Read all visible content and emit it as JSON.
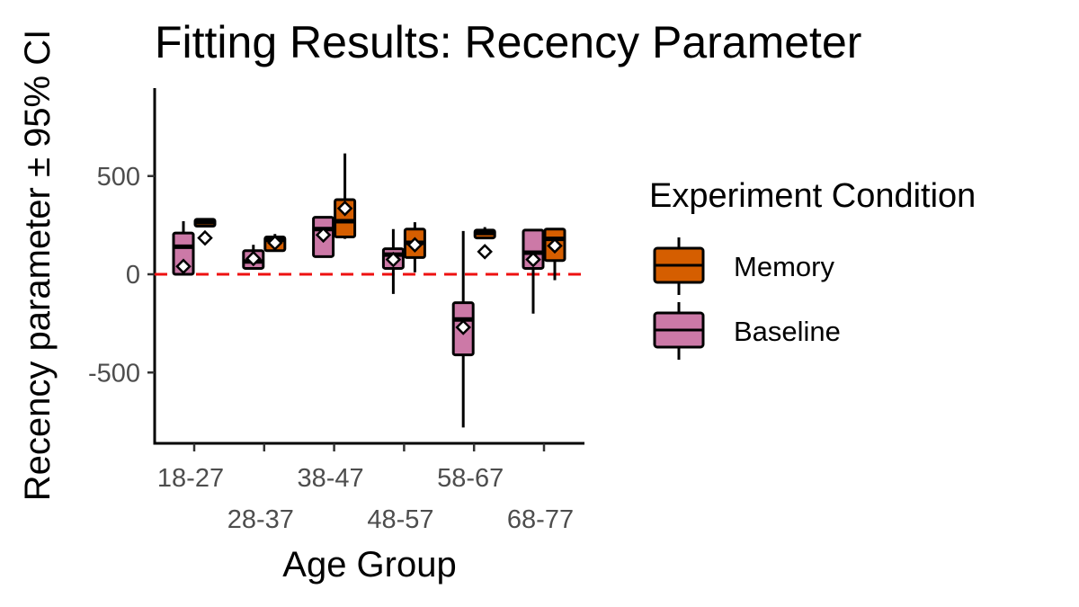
{
  "chart_data": {
    "type": "boxplot",
    "title": "Fitting Results: Recency Parameter",
    "xlabel": "Age Group",
    "ylabel": "Recency parameter ± 95% CI",
    "categories": [
      "18-27",
      "28-37",
      "38-47",
      "48-57",
      "58-67",
      "68-77"
    ],
    "yticks": [
      -500,
      0,
      500
    ],
    "ylim": [
      -870,
      950
    ],
    "reference_line": {
      "y": 0,
      "style": "dashed",
      "color": "#ee1111"
    },
    "grid": false,
    "legend": {
      "title": "Experiment Condition",
      "position": "right",
      "entries": [
        {
          "name": "Memory",
          "color": "#d55e00"
        },
        {
          "name": "Baseline",
          "color": "#cc79a7"
        }
      ]
    },
    "series": [
      {
        "name": "Baseline",
        "color": "#cc79a7",
        "boxes": [
          {
            "category": "18-27",
            "whisker_low": 0,
            "q1": 0,
            "median": 140,
            "q3": 210,
            "whisker_high": 270,
            "mean": 40
          },
          {
            "category": "28-37",
            "whisker_low": 30,
            "q1": 30,
            "median": 65,
            "q3": 120,
            "whisker_high": 150,
            "mean": 80
          },
          {
            "category": "38-47",
            "whisker_low": 90,
            "q1": 90,
            "median": 230,
            "q3": 290,
            "whisker_high": 290,
            "mean": 200
          },
          {
            "category": "48-57",
            "whisker_low": -100,
            "q1": 30,
            "median": 100,
            "q3": 130,
            "whisker_high": 230,
            "mean": 75
          },
          {
            "category": "58-67",
            "whisker_low": -780,
            "q1": -410,
            "median": -230,
            "q3": -145,
            "whisker_high": 220,
            "mean": -270
          },
          {
            "category": "68-77",
            "whisker_low": -200,
            "q1": 30,
            "median": 110,
            "q3": 225,
            "whisker_high": 225,
            "mean": 75
          }
        ]
      },
      {
        "name": "Memory",
        "color": "#d55e00",
        "boxes": [
          {
            "category": "18-27",
            "whisker_low": 245,
            "q1": 245,
            "median": 265,
            "q3": 280,
            "whisker_high": 280,
            "mean": 185
          },
          {
            "category": "28-37",
            "whisker_low": 120,
            "q1": 120,
            "median": 175,
            "q3": 190,
            "whisker_high": 205,
            "mean": 160
          },
          {
            "category": "38-47",
            "whisker_low": 180,
            "q1": 190,
            "median": 270,
            "q3": 380,
            "whisker_high": 615,
            "mean": 335
          },
          {
            "category": "48-57",
            "whisker_low": 10,
            "q1": 85,
            "median": 160,
            "q3": 230,
            "whisker_high": 265,
            "mean": 150
          },
          {
            "category": "58-67",
            "whisker_low": 185,
            "q1": 185,
            "median": 210,
            "q3": 225,
            "whisker_high": 240,
            "mean": 115
          },
          {
            "category": "68-77",
            "whisker_low": -30,
            "q1": 70,
            "median": 180,
            "q3": 230,
            "whisker_high": 230,
            "mean": 145
          }
        ]
      }
    ]
  }
}
